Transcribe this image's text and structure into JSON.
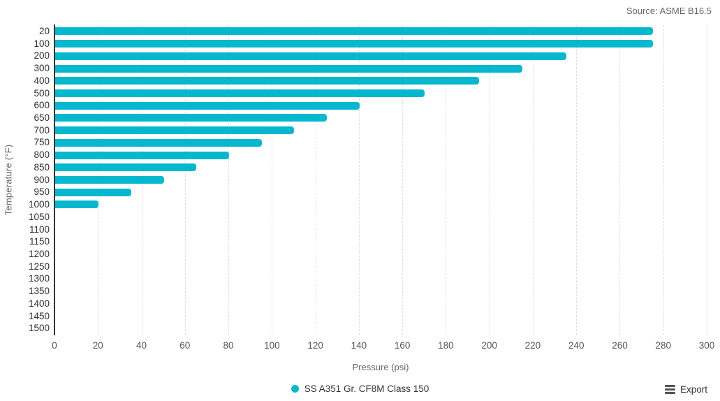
{
  "source_credit": "Source: ASME B16.5",
  "export": {
    "label": "Export"
  },
  "colors": {
    "bar": "#06b8ce",
    "grid": "#dedede",
    "axis": "#333333"
  },
  "chart_data": {
    "type": "bar",
    "orientation": "horizontal",
    "title": "",
    "xlabel": "Pressure (psi)",
    "ylabel": "Temperature (°F)",
    "xlim": [
      0,
      300
    ],
    "xticks": [
      0,
      20,
      40,
      60,
      80,
      100,
      120,
      140,
      160,
      180,
      200,
      220,
      240,
      260,
      280,
      300
    ],
    "categories": [
      "20",
      "100",
      "200",
      "300",
      "400",
      "500",
      "600",
      "650",
      "700",
      "750",
      "800",
      "850",
      "900",
      "950",
      "1000",
      "1050",
      "1100",
      "1150",
      "1200",
      "1250",
      "1300",
      "1350",
      "1400",
      "1450",
      "1500"
    ],
    "series": [
      {
        "name": "SS A351 Gr. CF8M Class 150",
        "values": [
          275,
          275,
          235,
          215,
          195,
          170,
          140,
          125,
          110,
          95,
          80,
          65,
          50,
          35,
          20,
          0,
          0,
          0,
          0,
          0,
          0,
          0,
          0,
          0,
          0
        ]
      }
    ],
    "grid": "dashed-vertical",
    "legend_position": "bottom-center"
  }
}
